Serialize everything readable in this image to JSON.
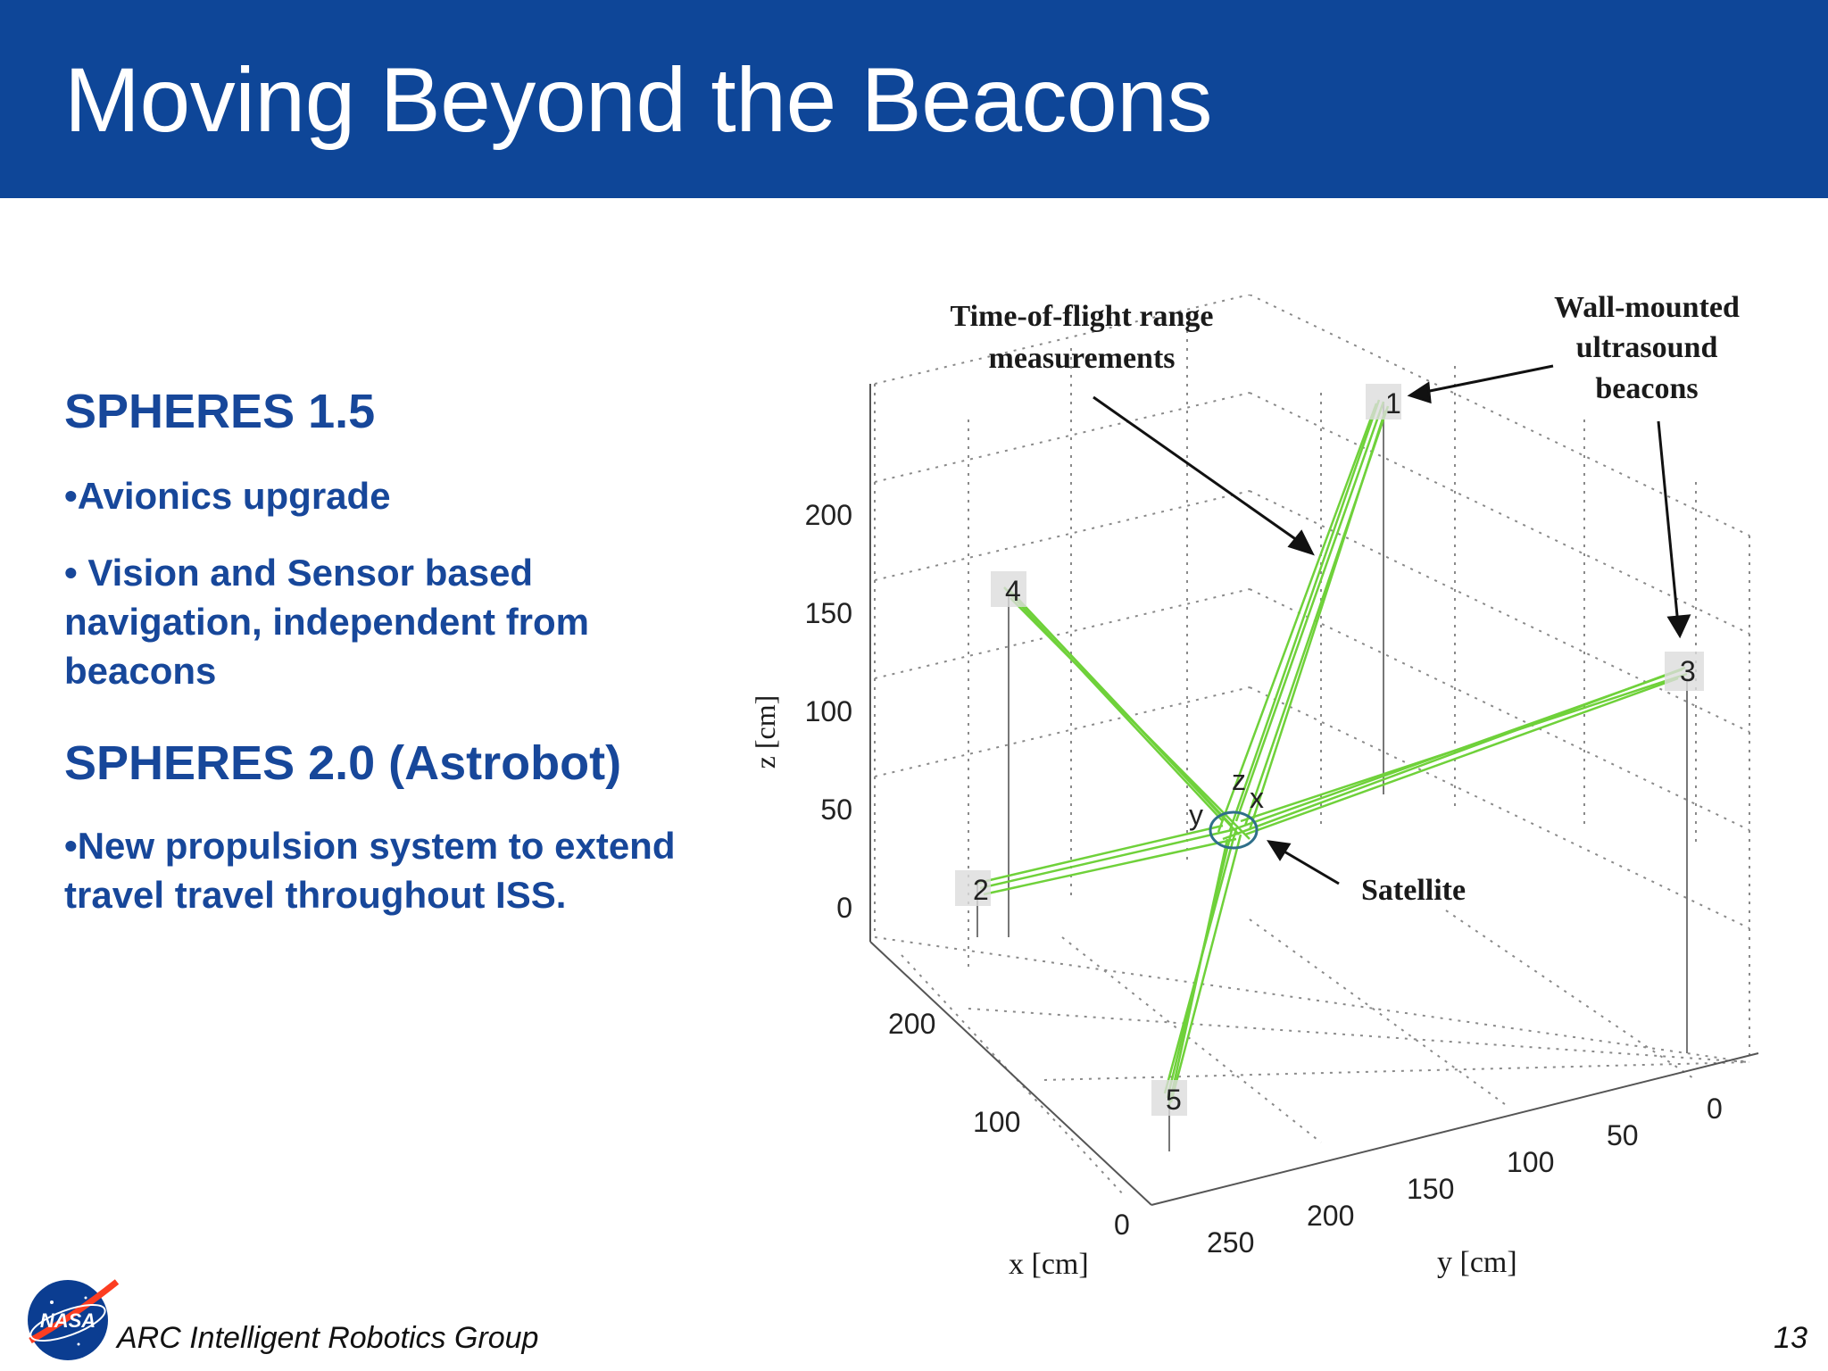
{
  "slide": {
    "title": "Moving Beyond the Beacons",
    "page_number": "13",
    "footer": "ARC Intelligent Robotics Group",
    "logo_text": "NASA"
  },
  "content": {
    "section1": {
      "heading": "SPHERES 1.5",
      "bullets": [
        "•Avionics upgrade",
        "• Vision and Sensor based navigation, independent from beacons"
      ]
    },
    "section2": {
      "heading": "SPHERES 2.0 (Astrobot)",
      "bullets": [
        "•New propulsion system to extend travel travel throughout ISS."
      ]
    }
  },
  "figure": {
    "callouts": {
      "tof_line1": "Time-of-flight range",
      "tof_line2": "measurements",
      "wall_line1": "Wall-mounted",
      "wall_line2": "ultrasound",
      "wall_line3": "beacons",
      "satellite": "Satellite"
    },
    "axes": {
      "z_label": "z [cm]",
      "x_label": "x [cm]",
      "y_label": "y [cm]",
      "z_ticks": [
        "200",
        "150",
        "100",
        "50",
        "0"
      ],
      "x_ticks": [
        "200",
        "100",
        "0"
      ],
      "y_ticks": [
        "250",
        "200",
        "150",
        "100",
        "50",
        "0"
      ]
    },
    "beacons": [
      "1",
      "2",
      "3",
      "4",
      "5"
    ],
    "satellite_axes": [
      "z",
      "x",
      "y"
    ],
    "colors": {
      "range_lines": "#6fd13a",
      "header_bg": "#0e4698",
      "text_blue": "#17479a"
    }
  }
}
